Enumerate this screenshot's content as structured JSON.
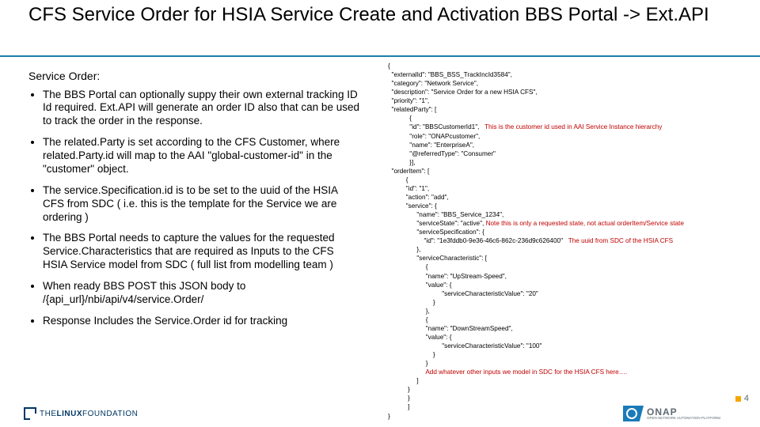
{
  "colors": {
    "title_rule": "#1d7ea8",
    "annotation": "#c00000",
    "footer_text": "#5f6a72",
    "onap_blue": "#1a7bb8",
    "lf_blue": "#003764",
    "accent_square": "#f7a600"
  },
  "title": "CFS Service Order for HSIA Service Create and Activation BBS Portal -> Ext.API",
  "left": {
    "lead": "Service Order:",
    "bullets": [
      "The BBS Portal can optionally suppy their own external tracking ID Id required. Ext.API will generate an order ID also that can be used to track the order in the response.",
      "The related.Party is set according to the CFS Customer, where related.Party.id will map to the AAI \"global-customer-id\" in the \"customer\" object.",
      "The service.Specification.id is to be set to the uuid of the HSIA CFS from SDC ( i.e. this is the template for the Service we are ordering )",
      "The BBS Portal needs to capture the  values for the requested Service.Characteristics that are required as Inputs to the CFS HSIA Service model from SDC ( full list from modelling team )",
      "When ready BBS POST this JSON body to /{api_url}/nbi/api/v4/service.Order/",
      "Response Includes the Service.Order id for tracking"
    ]
  },
  "json_lines": [
    {
      "t": "{"
    },
    {
      "t": "  \"externalId\": \"BBS_BSS_TrackIncId3584\","
    },
    {
      "t": "  \"category\": \"Network Service\","
    },
    {
      "t": "  \"description\": \"Service Order for a new HSIA CFS\","
    },
    {
      "t": "  \"priority\": \"1\","
    },
    {
      "t": "  \"relatedParty\": ["
    },
    {
      "t": "            {"
    },
    {
      "t": "            \"id\": \"BBSCustomerId1\",",
      "a": "   This is the customer id used in AAI Service Instance hierarchy"
    },
    {
      "t": "            \"role\": \"ONAPcustomer\","
    },
    {
      "t": "            \"name\": \"EnterpriseA\","
    },
    {
      "t": "            \"@referredType\": \"Consumer\""
    },
    {
      "t": "            }],"
    },
    {
      "t": "  \"orderItem\": ["
    },
    {
      "t": "          {"
    },
    {
      "t": "          \"id\": \"1\","
    },
    {
      "t": "          \"action\": \"add\","
    },
    {
      "t": "          \"service\": {"
    },
    {
      "t": "                \"name\": \"BBS_Service_1234\","
    },
    {
      "t": "                \"serviceState\": \"active\",",
      "a": " Note this is only a requested state, not actual orderItem/Service state"
    },
    {
      "t": "                \"serviceSpecification\": {"
    },
    {
      "t": "                    \"id\": \"1e3fddb0-9e36-46c6-862c-236d9c626400\"",
      "a": "   The uuid from SDC of the HSIA CFS"
    },
    {
      "t": "                },"
    },
    {
      "t": "                \"serviceCharacteristic\": ["
    },
    {
      "t": "                     {"
    },
    {
      "t": "                     \"name\": \"UpStream-Speed\","
    },
    {
      "t": "                     \"value\": {"
    },
    {
      "t": "                              \"serviceCharacteristicValue\": \"20\""
    },
    {
      "t": "                         }"
    },
    {
      "t": "                     },"
    },
    {
      "t": "                     {"
    },
    {
      "t": "                     \"name\": \"DownStreamSpeed\","
    },
    {
      "t": "                     \"value\": {"
    },
    {
      "t": "                              \"serviceCharacteristicValue\": \"100\""
    },
    {
      "t": "                         }"
    },
    {
      "t": "                     }"
    },
    {
      "t": "",
      "a": "                     Add whatever other inputs we model in SDC for the HSIA CFS here…."
    },
    {
      "t": "                ]"
    },
    {
      "t": "           }"
    },
    {
      "t": "           }"
    },
    {
      "t": "           ]"
    },
    {
      "t": "}"
    }
  ],
  "page_number": "4",
  "footer": {
    "linux_foundation": "THE LINUX FOUNDATION",
    "onap_big": "ONAP",
    "onap_small": "OPEN NETWORK AUTOMATION PLATFORM"
  }
}
